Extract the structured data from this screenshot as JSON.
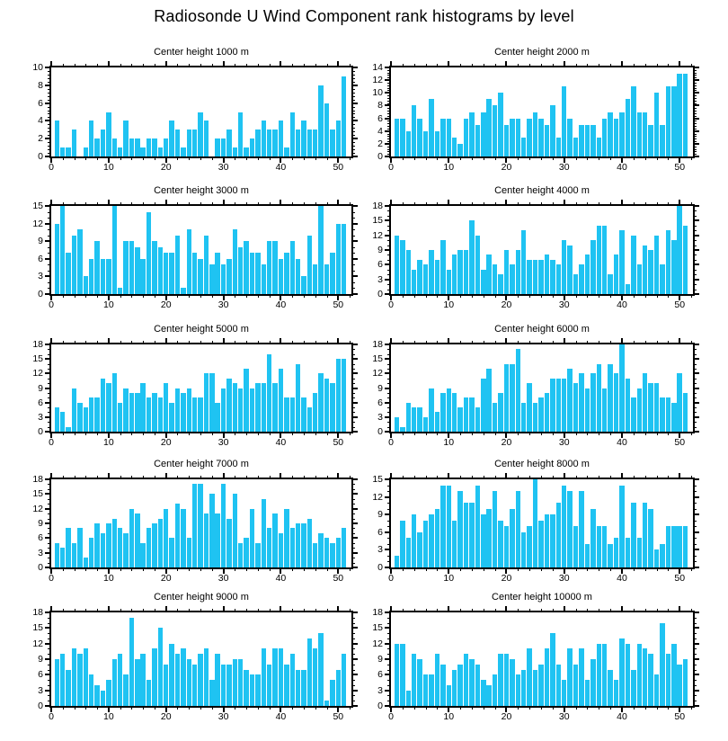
{
  "title": "Radiosonde U Wind Component rank histograms by level",
  "bar_color": "#1FC3F2",
  "axis_color": "#000000",
  "chart_data": [
    {
      "type": "bar",
      "title": "Center height 1000 m",
      "ylim": [
        0,
        10
      ],
      "yticks": [
        0,
        2,
        4,
        6,
        8,
        10
      ],
      "yminor_step": 0.4,
      "xticks": [
        0,
        10,
        20,
        30,
        40,
        50
      ],
      "xminor_step": 2,
      "xlim": [
        0,
        52.3
      ],
      "values": [
        4,
        1,
        1,
        3,
        0,
        1,
        4,
        2,
        3,
        5,
        2,
        1,
        4,
        2,
        2,
        1,
        2,
        2,
        1,
        2,
        4,
        3,
        1,
        3,
        3,
        5,
        4,
        0,
        2,
        2,
        3,
        1,
        5,
        1,
        2,
        3,
        4,
        3,
        3,
        4,
        1,
        5,
        3,
        4,
        3,
        3,
        8,
        6,
        3,
        4,
        9
      ]
    },
    {
      "type": "bar",
      "title": "Center height 2000 m",
      "ylim": [
        0,
        14
      ],
      "yticks": [
        0,
        2,
        4,
        6,
        8,
        10,
        12,
        14
      ],
      "yminor_step": 0.4,
      "xticks": [
        0,
        10,
        20,
        30,
        40,
        50
      ],
      "xminor_step": 2,
      "xlim": [
        0,
        52.3
      ],
      "values": [
        6,
        6,
        4,
        8,
        6,
        4,
        9,
        4,
        6,
        6,
        3,
        2,
        6,
        7,
        5,
        7,
        9,
        8,
        10,
        5,
        6,
        6,
        3,
        6,
        7,
        6,
        5,
        8,
        3,
        11,
        6,
        3,
        5,
        5,
        5,
        3,
        6,
        7,
        6,
        7,
        9,
        11,
        7,
        7,
        5,
        10,
        5,
        11,
        11,
        13,
        13
      ]
    },
    {
      "type": "bar",
      "title": "Center height 3000 m",
      "ylim": [
        0,
        15
      ],
      "yticks": [
        0,
        3,
        6,
        9,
        12,
        15
      ],
      "yminor_step": 1,
      "xticks": [
        0,
        10,
        20,
        30,
        40,
        50
      ],
      "xminor_step": 2,
      "xlim": [
        0,
        52.3
      ],
      "values": [
        12,
        15,
        7,
        10,
        11,
        3,
        6,
        9,
        6,
        6,
        15,
        1,
        9,
        9,
        8,
        6,
        14,
        9,
        8,
        7,
        7,
        10,
        1,
        11,
        7,
        6,
        10,
        5,
        7,
        5,
        6,
        11,
        8,
        9,
        7,
        7,
        5,
        9,
        9,
        6,
        7,
        9,
        6,
        3,
        10,
        5,
        15,
        5,
        7,
        12,
        12
      ]
    },
    {
      "type": "bar",
      "title": "Center height 4000 m",
      "ylim": [
        0,
        18
      ],
      "yticks": [
        0,
        3,
        6,
        9,
        12,
        15,
        18
      ],
      "yminor_step": 1,
      "xticks": [
        0,
        10,
        20,
        30,
        40,
        50
      ],
      "xminor_step": 2,
      "xlim": [
        0,
        52.3
      ],
      "values": [
        12,
        11,
        9,
        5,
        7,
        6,
        9,
        7,
        11,
        5,
        8,
        9,
        9,
        15,
        12,
        5,
        8,
        6,
        4,
        9,
        6,
        9,
        13,
        7,
        7,
        7,
        8,
        7,
        6,
        11,
        10,
        4,
        6,
        8,
        11,
        14,
        14,
        4,
        8,
        13,
        2,
        12,
        6,
        10,
        9,
        12,
        6,
        13,
        11,
        18,
        14
      ]
    },
    {
      "type": "bar",
      "title": "Center height 5000 m",
      "ylim": [
        0,
        18
      ],
      "yticks": [
        0,
        3,
        6,
        9,
        12,
        15,
        18
      ],
      "yminor_step": 1,
      "xticks": [
        0,
        10,
        20,
        30,
        40,
        50
      ],
      "xminor_step": 2,
      "xlim": [
        0,
        52.3
      ],
      "values": [
        5,
        4,
        1,
        9,
        6,
        5,
        7,
        7,
        11,
        10,
        12,
        6,
        9,
        8,
        8,
        10,
        7,
        8,
        7,
        10,
        6,
        9,
        8,
        9,
        7,
        7,
        12,
        12,
        6,
        9,
        11,
        10,
        9,
        13,
        9,
        10,
        10,
        16,
        10,
        13,
        7,
        7,
        14,
        7,
        5,
        8,
        12,
        11,
        10,
        15,
        15
      ]
    },
    {
      "type": "bar",
      "title": "Center height 6000 m",
      "ylim": [
        0,
        18
      ],
      "yticks": [
        0,
        3,
        6,
        9,
        12,
        15,
        18
      ],
      "yminor_step": 1,
      "xticks": [
        0,
        10,
        20,
        30,
        40,
        50
      ],
      "xminor_step": 2,
      "xlim": [
        0,
        52.3
      ],
      "values": [
        3,
        1,
        6,
        5,
        5,
        3,
        9,
        4,
        8,
        9,
        8,
        5,
        7,
        7,
        5,
        11,
        13,
        6,
        8,
        14,
        14,
        17,
        6,
        10,
        6,
        7,
        8,
        11,
        11,
        11,
        13,
        10,
        12,
        9,
        12,
        14,
        9,
        14,
        12,
        18,
        11,
        7,
        9,
        12,
        10,
        10,
        7,
        7,
        6,
        12,
        8
      ]
    },
    {
      "type": "bar",
      "title": "Center height 7000 m",
      "ylim": [
        0,
        18
      ],
      "yticks": [
        0,
        3,
        6,
        9,
        12,
        15,
        18
      ],
      "yminor_step": 1,
      "xticks": [
        0,
        10,
        20,
        30,
        40,
        50
      ],
      "xminor_step": 2,
      "xlim": [
        0,
        52.3
      ],
      "values": [
        5,
        4,
        8,
        5,
        8,
        2,
        6,
        9,
        7,
        9,
        10,
        8,
        7,
        12,
        11,
        5,
        8,
        9,
        10,
        12,
        6,
        13,
        12,
        6,
        17,
        17,
        11,
        15,
        11,
        17,
        10,
        15,
        5,
        6,
        12,
        5,
        14,
        8,
        11,
        7,
        12,
        8,
        9,
        9,
        10,
        5,
        7,
        6,
        5,
        6,
        8
      ]
    },
    {
      "type": "bar",
      "title": "Center height 8000 m",
      "ylim": [
        0,
        15
      ],
      "yticks": [
        0,
        3,
        6,
        9,
        12,
        15
      ],
      "yminor_step": 1,
      "xticks": [
        0,
        10,
        20,
        30,
        40,
        50
      ],
      "xminor_step": 2,
      "xlim": [
        0,
        52.3
      ],
      "values": [
        2,
        8,
        5,
        9,
        6,
        8,
        9,
        10,
        14,
        14,
        8,
        13,
        11,
        11,
        14,
        9,
        10,
        13,
        8,
        7,
        10,
        13,
        6,
        7,
        15,
        8,
        9,
        9,
        11,
        14,
        13,
        7,
        13,
        4,
        10,
        7,
        7,
        4,
        5,
        14,
        5,
        11,
        5,
        11,
        10,
        3,
        4,
        7,
        7,
        7,
        7
      ]
    },
    {
      "type": "bar",
      "title": "Center height 9000 m",
      "ylim": [
        0,
        18
      ],
      "yticks": [
        0,
        3,
        6,
        9,
        12,
        15,
        18
      ],
      "yminor_step": 1,
      "xticks": [
        0,
        10,
        20,
        30,
        40,
        50
      ],
      "xminor_step": 2,
      "xlim": [
        0,
        52.3
      ],
      "values": [
        9,
        10,
        7,
        11,
        10,
        11,
        6,
        4,
        3,
        5,
        9,
        10,
        6,
        17,
        9,
        10,
        5,
        11,
        15,
        8,
        12,
        10,
        11,
        9,
        8,
        10,
        11,
        5,
        10,
        8,
        8,
        9,
        9,
        7,
        6,
        6,
        11,
        8,
        11,
        11,
        8,
        10,
        7,
        7,
        13,
        11,
        14,
        1,
        5,
        7,
        10
      ]
    },
    {
      "type": "bar",
      "title": "Center height 10000 m",
      "ylim": [
        0,
        18
      ],
      "yticks": [
        0,
        3,
        6,
        9,
        12,
        15,
        18
      ],
      "yminor_step": 1,
      "xticks": [
        0,
        10,
        20,
        30,
        40,
        50
      ],
      "xminor_step": 2,
      "xlim": [
        0,
        52.3
      ],
      "values": [
        12,
        12,
        3,
        10,
        9,
        6,
        6,
        10,
        8,
        4,
        7,
        8,
        10,
        9,
        8,
        5,
        4,
        6,
        10,
        10,
        9,
        6,
        7,
        11,
        7,
        8,
        11,
        14,
        8,
        5,
        11,
        8,
        11,
        5,
        9,
        12,
        12,
        7,
        5,
        13,
        12,
        7,
        12,
        11,
        10,
        6,
        16,
        10,
        12,
        8,
        9
      ]
    }
  ]
}
